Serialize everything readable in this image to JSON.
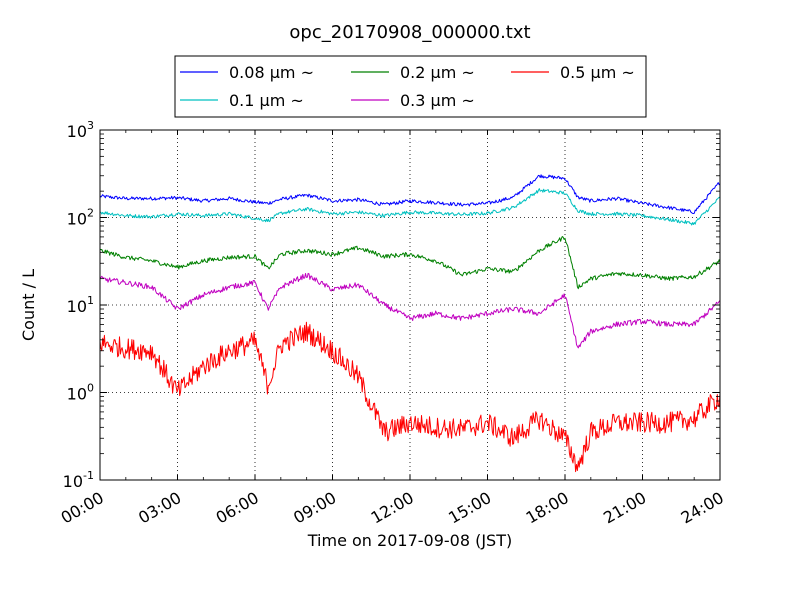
{
  "chart_data": {
    "type": "line",
    "title": "opc_20170908_000000.txt",
    "xlabel": "Time on 2017-09-08 (JST)",
    "ylabel": "Count / L",
    "x_unit": "hours",
    "xlim": [
      0,
      24
    ],
    "ylim": [
      0.1,
      1000
    ],
    "yscale": "log",
    "grid": true,
    "legend_position": "top",
    "x_ticks": [
      {
        "label": "00:00",
        "value": 0
      },
      {
        "label": "03:00",
        "value": 3
      },
      {
        "label": "06:00",
        "value": 6
      },
      {
        "label": "09:00",
        "value": 9
      },
      {
        "label": "12:00",
        "value": 12
      },
      {
        "label": "15:00",
        "value": 15
      },
      {
        "label": "18:00",
        "value": 18
      },
      {
        "label": "21:00",
        "value": 21
      },
      {
        "label": "24:00",
        "value": 24
      }
    ],
    "y_ticks": [
      {
        "base": "10",
        "exp": "-1",
        "value": 0.1
      },
      {
        "base": "10",
        "exp": "0",
        "value": 1
      },
      {
        "base": "10",
        "exp": "1",
        "value": 10
      },
      {
        "base": "10",
        "exp": "2",
        "value": 100
      },
      {
        "base": "10",
        "exp": "3",
        "value": 1000
      }
    ],
    "x": [
      0,
      1,
      2,
      3,
      4,
      5,
      6,
      6.5,
      7,
      8,
      9,
      10,
      11,
      12,
      13,
      14,
      15,
      16,
      17,
      18,
      18.5,
      19,
      20,
      21,
      22,
      23,
      24
    ],
    "series": [
      {
        "name": "0.08 μm ~",
        "color": "#0000ff",
        "noise": 0.02,
        "values": [
          175,
          165,
          165,
          168,
          155,
          165,
          150,
          145,
          162,
          180,
          155,
          160,
          140,
          155,
          148,
          140,
          145,
          170,
          300,
          280,
          170,
          155,
          165,
          145,
          130,
          115,
          255
        ]
      },
      {
        "name": "0.1 μm ~",
        "color": "#00c0c0",
        "noise": 0.02,
        "values": [
          115,
          105,
          102,
          110,
          105,
          110,
          98,
          92,
          112,
          125,
          110,
          115,
          105,
          115,
          112,
          108,
          112,
          130,
          205,
          190,
          120,
          110,
          110,
          105,
          95,
          85,
          170
        ]
      },
      {
        "name": "0.2 μm ~",
        "color": "#008000",
        "noise": 0.025,
        "values": [
          42,
          35,
          32,
          27,
          32,
          35,
          36,
          26,
          38,
          42,
          38,
          45,
          36,
          38,
          32,
          22,
          26,
          24,
          42,
          60,
          16,
          20,
          23,
          22,
          20,
          21,
          32
        ]
      },
      {
        "name": "0.3 μm ~",
        "color": "#c000c0",
        "noise": 0.03,
        "values": [
          20,
          18,
          16,
          9,
          13,
          16,
          18,
          9,
          16,
          22,
          15,
          17,
          10,
          7,
          8,
          7,
          8,
          9,
          8,
          13,
          3.2,
          5,
          6,
          6.5,
          6,
          6,
          11
        ]
      },
      {
        "name": "0.5 μm ~",
        "color": "#ff0000",
        "noise": 0.12,
        "values": [
          3.7,
          3.2,
          3.0,
          1.0,
          2.0,
          3.0,
          3.8,
          1.2,
          3.5,
          5.0,
          3.0,
          1.5,
          0.35,
          0.45,
          0.4,
          0.38,
          0.45,
          0.3,
          0.5,
          0.3,
          0.14,
          0.35,
          0.45,
          0.45,
          0.45,
          0.5,
          0.9
        ]
      }
    ]
  }
}
